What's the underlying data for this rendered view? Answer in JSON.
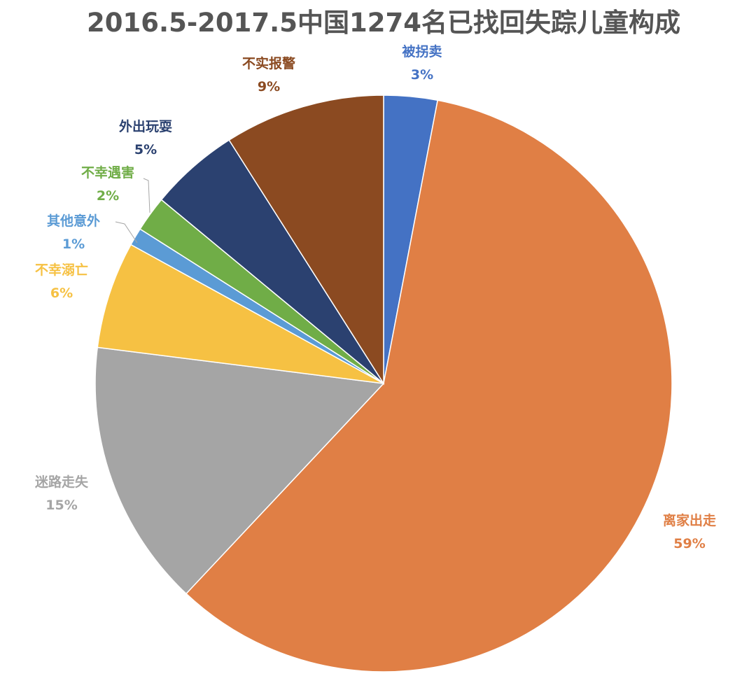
{
  "chart_data": {
    "type": "pie",
    "title": "2016.5-2017.5中国1274名已找回失踪儿童构成",
    "start_angle_deg": 0,
    "direction": "clockwise",
    "slices": [
      {
        "label": "被拐卖",
        "value": 3,
        "value_label": "3%",
        "color": "#4472c4"
      },
      {
        "label": "离家出走",
        "value": 59,
        "value_label": "59%",
        "color": "#e07f45"
      },
      {
        "label": "迷路走失",
        "value": 15,
        "value_label": "15%",
        "color": "#a5a5a5"
      },
      {
        "label": "不幸溺亡",
        "value": 6,
        "value_label": "6%",
        "color": "#f6c143"
      },
      {
        "label": "其他意外",
        "value": 1,
        "value_label": "1%",
        "color": "#5b9bd5"
      },
      {
        "label": "不幸遇害",
        "value": 2,
        "value_label": "2%",
        "color": "#70ad47"
      },
      {
        "label": "外出玩耍",
        "value": 5,
        "value_label": "5%",
        "color": "#2b4170"
      },
      {
        "label": "不实报警",
        "value": 9,
        "value_label": "9%",
        "color": "#8b4a21"
      }
    ]
  }
}
